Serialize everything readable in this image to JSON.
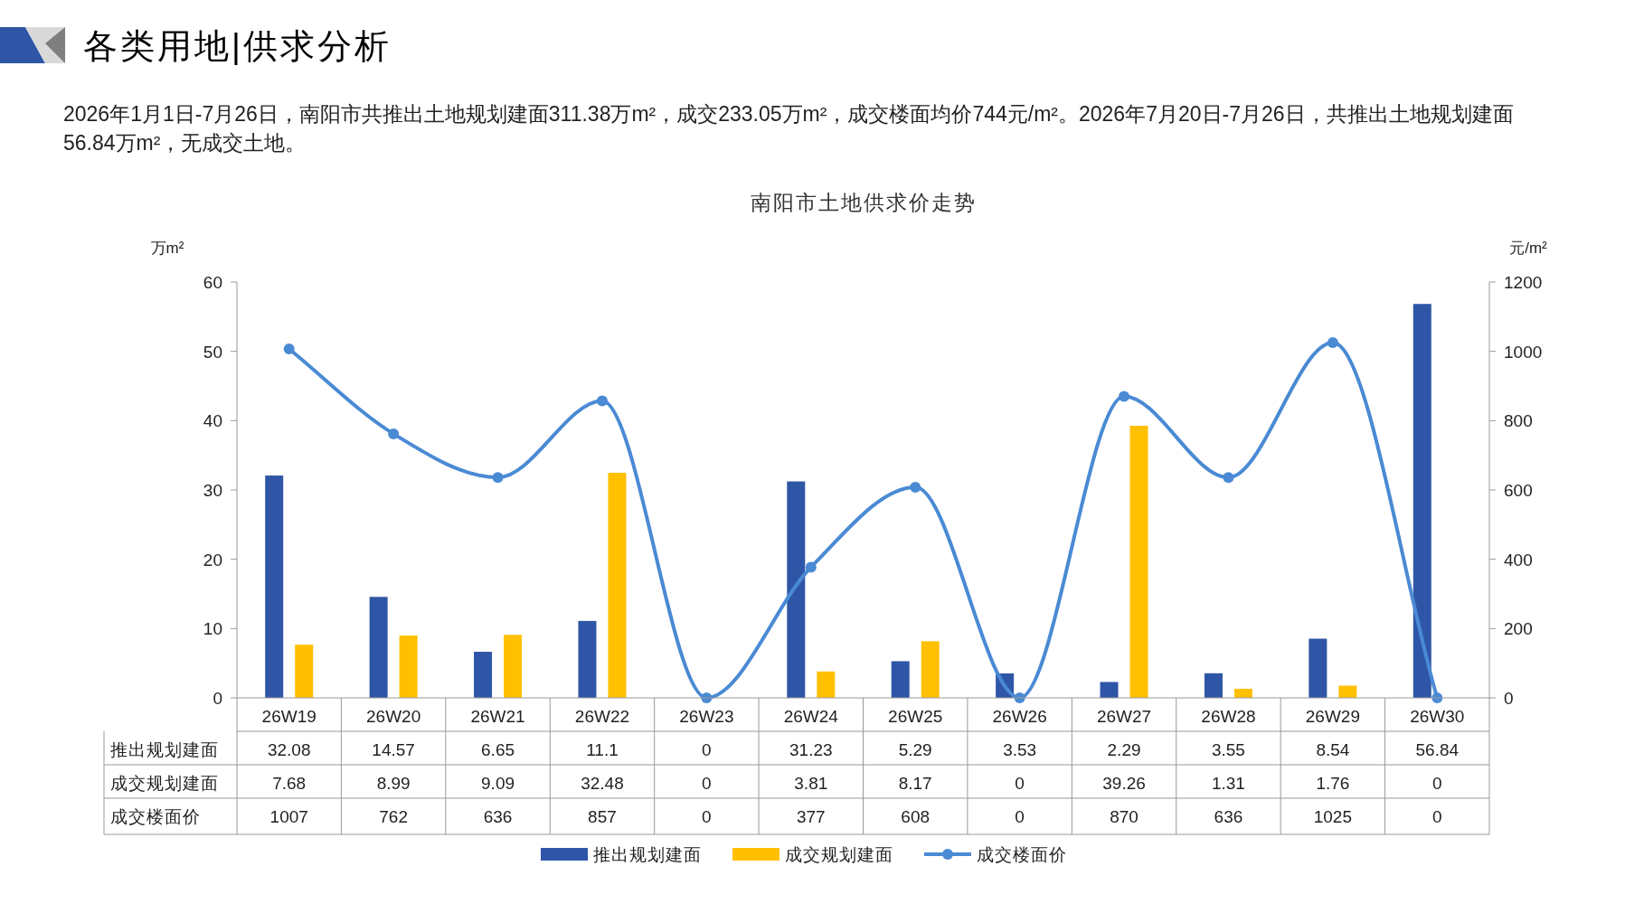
{
  "chart_data": {
    "type": "bar",
    "title": "南阳市土地供求价走势",
    "annotations": [
      "各类用地|供求分析",
      "2026年1月1日-7月26日，南阳市共推出土地规划建面311.38万m²，成交233.05万m²，成交楼面均价744元/m²。2026年7月20日-7月26日，共推出土地规划建面56.84万m²，无成交土地。"
    ],
    "ylabel": "万m²",
    "y2label": "元/m²",
    "categories": [
      "26W19",
      "26W20",
      "26W21",
      "26W22",
      "26W23",
      "26W24",
      "26W25",
      "26W26",
      "26W27",
      "26W28",
      "26W29",
      "26W30"
    ],
    "series": [
      {
        "name": "推出规划建面",
        "color": "#2f56a6",
        "values": [
          32.08,
          14.57,
          6.65,
          11.1,
          0,
          31.23,
          5.29,
          3.53,
          2.29,
          3.55,
          8.54,
          56.84
        ]
      },
      {
        "name": "成交规划建面",
        "color": "#ffc000",
        "values": [
          7.68,
          8.99,
          9.09,
          32.48,
          0,
          3.81,
          8.17,
          0,
          39.26,
          1.31,
          1.76,
          0
        ]
      },
      {
        "name": "成交楼面价",
        "type": "line",
        "axis": "y2",
        "color": "#4a8ad4",
        "values": [
          1007,
          762,
          636,
          857,
          0,
          377,
          608,
          0,
          870,
          636,
          1025,
          0
        ]
      }
    ],
    "ylim": [
      0,
      60
    ],
    "yticks": [
      0,
      10,
      20,
      30,
      40,
      50,
      60
    ],
    "y2lim": [
      0,
      1200
    ],
    "y2ticks": [
      0,
      200,
      400,
      600,
      800,
      1000,
      1200
    ],
    "marker": "circle",
    "data_labels": true,
    "legend": "bottom"
  }
}
